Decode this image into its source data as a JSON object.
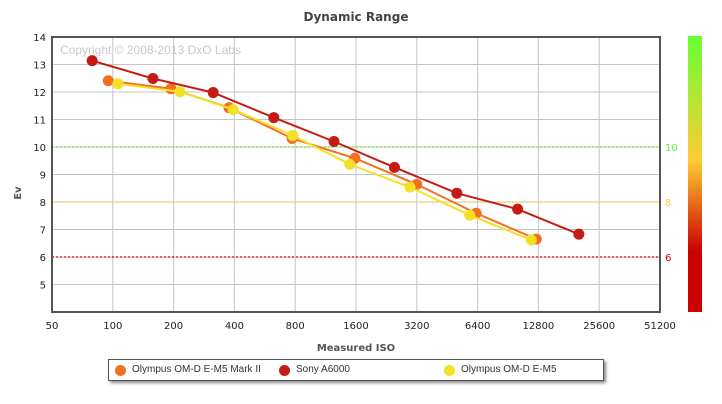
{
  "chart_data": {
    "type": "line",
    "title": "Dynamic Range",
    "xlabel": "Measured ISO",
    "ylabel": "Ev",
    "watermark": "Copyright © 2008-2013 DxO Labs",
    "xscale": "log2",
    "xlim": [
      50,
      51200
    ],
    "ylim": [
      4,
      14
    ],
    "x_ticks": [
      "50",
      "100",
      "200",
      "400",
      "800",
      "1600",
      "3200",
      "6400",
      "12800",
      "25600",
      "51200"
    ],
    "y_ticks": [
      "5",
      "6",
      "7",
      "8",
      "9",
      "10",
      "11",
      "12",
      "13",
      "14"
    ],
    "grid": true,
    "reference_lines": [
      {
        "value": 10,
        "label": "10",
        "color": "#66ee33"
      },
      {
        "value": 8,
        "label": "8",
        "color": "#ffcc33"
      },
      {
        "value": 6,
        "label": "6",
        "color": "#cc0000"
      }
    ],
    "color_scale": {
      "top": "#66ff33",
      "mid": "#ffcc33",
      "bottom": "#cc0000"
    },
    "legend_position": "bottom",
    "series": [
      {
        "name": "Olympus OM-D E-M5 Mark II",
        "color": "#f36f21",
        "x": [
          95,
          194,
          376,
          772,
          1580,
          3200,
          6300,
          12500
        ],
        "y": [
          12.41,
          12.12,
          11.43,
          10.31,
          9.59,
          8.64,
          7.59,
          6.65
        ]
      },
      {
        "name": "Sony A6000",
        "color": "#c41c14",
        "x": [
          79,
          158,
          314,
          627,
          1245,
          2480,
          5050,
          10100,
          20300
        ],
        "y": [
          13.14,
          12.49,
          11.98,
          11.07,
          10.2,
          9.26,
          8.32,
          7.74,
          6.83
        ]
      },
      {
        "name": "Olympus OM-D E-M5",
        "color": "#f5e028",
        "x": [
          106,
          215,
          395,
          778,
          1490,
          2960,
          5850,
          11800
        ],
        "y": [
          12.3,
          12.01,
          11.36,
          10.42,
          9.37,
          8.54,
          7.52,
          6.62
        ]
      }
    ]
  }
}
